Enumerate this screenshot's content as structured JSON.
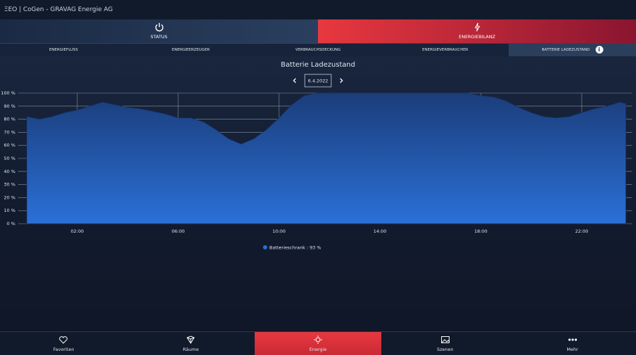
{
  "header": {
    "title": "ΞEO | CoGen - GRAVAG Energie AG"
  },
  "tabs": [
    "STATUS",
    "ENERGIEBILANZ"
  ],
  "subtabs": [
    "ENERGIEFLUSS",
    "ENERGIEERZEUGER",
    "VERBRAUCHSDECKUNG",
    "ENERGIEVERBRAUCHER",
    "BATTERIE LADEZUSTAND"
  ],
  "date": "6.4.2022",
  "chart_data": {
    "type": "area",
    "title": "Batterie Ladezustand",
    "x": [
      0,
      0.5,
      1,
      1.5,
      2,
      2.5,
      3,
      3.5,
      4,
      4.5,
      5,
      5.5,
      6,
      6.5,
      7,
      7.5,
      8,
      8.5,
      9,
      9.5,
      10,
      10.5,
      11,
      11.5,
      12,
      12.5,
      13,
      13.5,
      14,
      14.5,
      15,
      15.5,
      16,
      16.5,
      17,
      17.5,
      18,
      18.5,
      19,
      19.5,
      20,
      20.5,
      21,
      21.5,
      22,
      22.5,
      23,
      23.5,
      23.75
    ],
    "series": [
      {
        "name": "Batterieschrank : 93 %",
        "color": "#2a6fd6",
        "values": [
          82,
          80,
          82,
          85,
          87,
          90,
          93,
          91,
          89,
          88,
          86,
          84,
          81,
          81,
          78,
          72,
          65,
          61,
          65,
          72,
          81,
          91,
          98,
          100,
          100,
          100,
          100,
          100,
          100,
          100,
          100,
          100,
          100,
          100,
          100,
          100,
          98,
          97,
          94,
          89,
          85,
          82,
          81,
          82,
          85,
          88,
          90,
          93,
          92
        ]
      }
    ],
    "xlim": [
      0,
      24
    ],
    "xticks": [
      {
        "value": 2,
        "label": "02:00"
      },
      {
        "value": 6,
        "label": "06:00"
      },
      {
        "value": 10,
        "label": "10:00"
      },
      {
        "value": 14,
        "label": "14:00"
      },
      {
        "value": 18,
        "label": "18:00"
      },
      {
        "value": 22,
        "label": "22:00"
      }
    ],
    "ylim": [
      0,
      100
    ],
    "yticks": [
      {
        "value": 0,
        "label": "0 %"
      },
      {
        "value": 10,
        "label": "10 %"
      },
      {
        "value": 20,
        "label": "20 %"
      },
      {
        "value": 30,
        "label": "30 %"
      },
      {
        "value": 40,
        "label": "40 %"
      },
      {
        "value": 50,
        "label": "50 %"
      },
      {
        "value": 60,
        "label": "60 %"
      },
      {
        "value": 70,
        "label": "70 %"
      },
      {
        "value": 80,
        "label": "80 %"
      },
      {
        "value": 90,
        "label": "90 %"
      },
      {
        "value": 100,
        "label": "100 %"
      }
    ],
    "grid": true
  },
  "nav": [
    "Favoriten",
    "Räume",
    "Energie",
    "Szenen",
    "Mehr"
  ]
}
